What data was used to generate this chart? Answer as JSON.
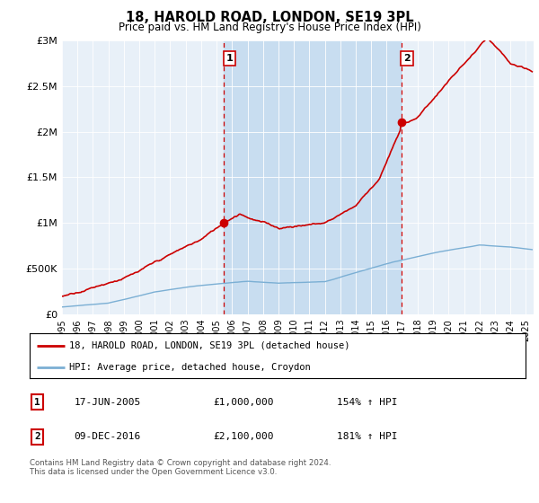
{
  "title": "18, HAROLD ROAD, LONDON, SE19 3PL",
  "subtitle": "Price paid vs. HM Land Registry's House Price Index (HPI)",
  "ylim": [
    0,
    3000000
  ],
  "yticks": [
    0,
    500000,
    1000000,
    1500000,
    2000000,
    2500000,
    3000000
  ],
  "ytick_labels": [
    "£0",
    "£500K",
    "£1M",
    "£1.5M",
    "£2M",
    "£2.5M",
    "£3M"
  ],
  "xlim_start": 1995.0,
  "xlim_end": 2025.5,
  "xtick_years": [
    1995,
    1996,
    1997,
    1998,
    1999,
    2000,
    2001,
    2002,
    2003,
    2004,
    2005,
    2006,
    2007,
    2008,
    2009,
    2010,
    2011,
    2012,
    2013,
    2014,
    2015,
    2016,
    2017,
    2018,
    2019,
    2020,
    2021,
    2022,
    2023,
    2024,
    2025
  ],
  "sale1_x": 2005.46,
  "sale1_y": 1000000,
  "sale2_x": 2016.94,
  "sale2_y": 2100000,
  "property_color": "#cc0000",
  "hpi_color": "#7bafd4",
  "vline_color": "#cc0000",
  "shade_color": "#c8ddf0",
  "plot_bg": "#e8f0f8",
  "legend_label1": "18, HAROLD ROAD, LONDON, SE19 3PL (detached house)",
  "legend_label2": "HPI: Average price, detached house, Croydon",
  "sale1_label": "1",
  "sale2_label": "2",
  "sale1_date": "17-JUN-2005",
  "sale1_price": "£1,000,000",
  "sale1_hpi": "154% ↑ HPI",
  "sale2_date": "09-DEC-2016",
  "sale2_price": "£2,100,000",
  "sale2_hpi": "181% ↑ HPI",
  "footer": "Contains HM Land Registry data © Crown copyright and database right 2024.\nThis data is licensed under the Open Government Licence v3.0."
}
